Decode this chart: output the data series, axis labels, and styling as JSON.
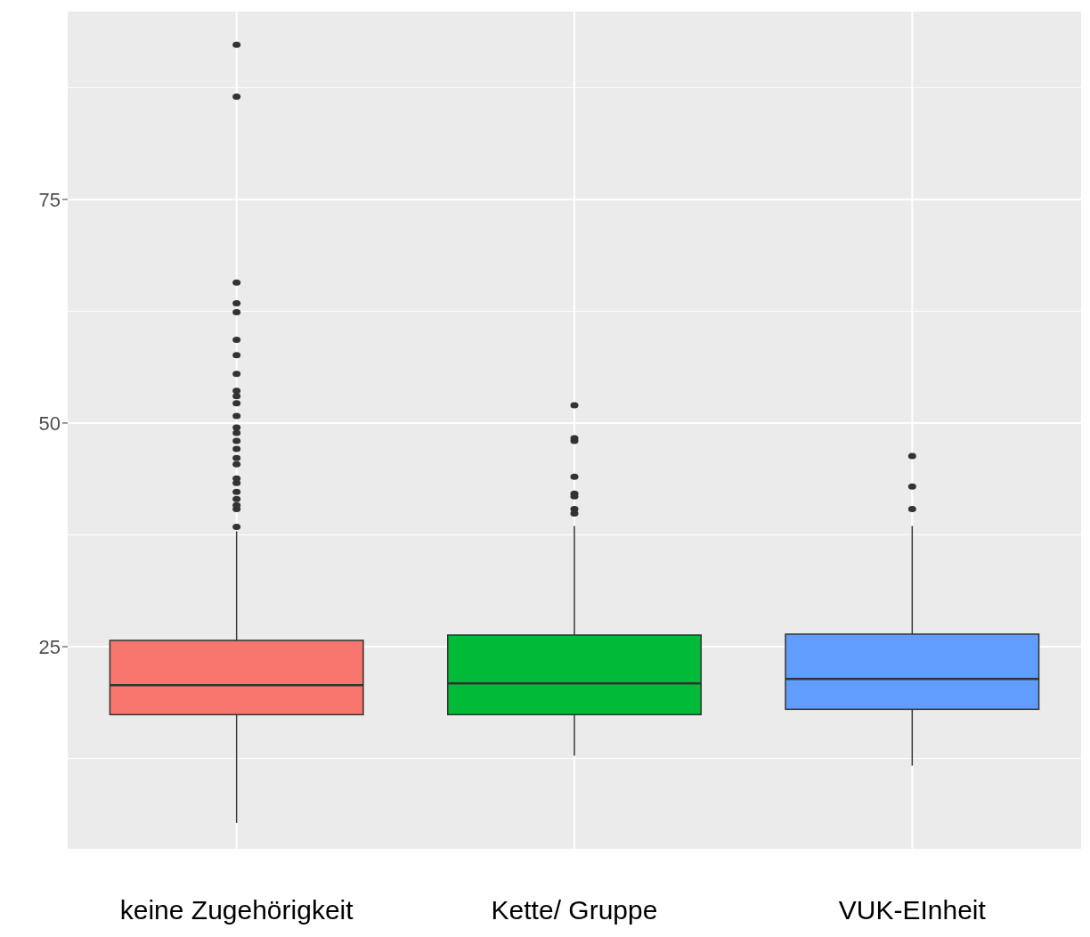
{
  "chart_data": {
    "type": "box",
    "categories": [
      "keine Zugehörigkeit",
      "Kette/ Gruppe",
      "VUK-EInheit"
    ],
    "colors": [
      "#f8766d",
      "#00ba38",
      "#619cff"
    ],
    "ylim": [
      2.4,
      96
    ],
    "yticks": [
      25,
      50,
      75
    ],
    "grid": true,
    "boxes": [
      {
        "low": 5.3,
        "q1": 17.4,
        "median": 20.7,
        "q3": 25.7,
        "high": 37.9,
        "outliers": [
          92.3,
          86.5,
          65.7,
          63.4,
          62.4,
          59.3,
          57.6,
          55.5,
          53.6,
          53.0,
          52.2,
          50.8,
          49.5,
          48.9,
          48.0,
          47.1,
          46.1,
          45.4,
          43.8,
          43.3,
          42.3,
          41.5,
          40.8,
          40.4,
          38.4
        ]
      },
      {
        "low": 12.8,
        "q1": 17.4,
        "median": 20.9,
        "q3": 26.3,
        "high": 38.5,
        "outliers": [
          52.0,
          48.3,
          48.0,
          44.0,
          42.1,
          41.8,
          40.4,
          39.9
        ]
      },
      {
        "low": 11.7,
        "q1": 18.0,
        "median": 21.4,
        "q3": 26.4,
        "high": 38.5,
        "outliers": [
          46.3,
          42.9,
          40.4
        ]
      }
    ]
  }
}
